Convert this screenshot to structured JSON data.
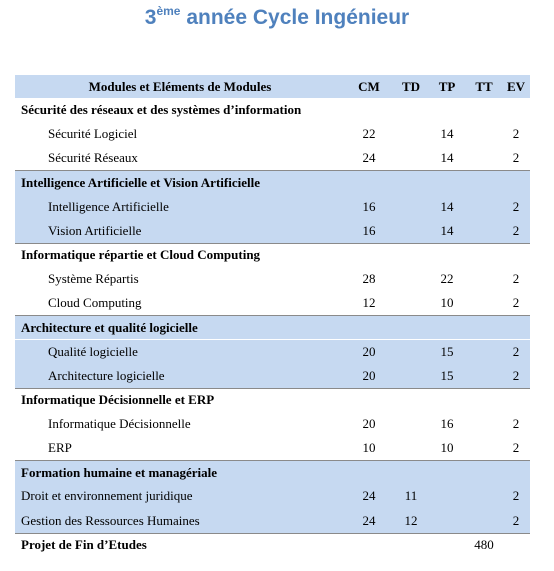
{
  "title": {
    "base": "3",
    "sup": "ème",
    "rest": " année Cycle Ingénieur"
  },
  "table": {
    "headers": [
      "Modules et Eléments de Modules",
      "CM",
      "TD",
      "TP",
      "TT",
      "EV"
    ],
    "groups": [
      {
        "name": "Sécurité des réseaux et des systèmes d’information",
        "shaded": false,
        "indented": true,
        "items": [
          {
            "name": "Sécurité Logiciel",
            "cm": 22,
            "tp": 14,
            "ev": 2
          },
          {
            "name": "Sécurité Réseaux",
            "cm": 24,
            "tp": 14,
            "ev": 2
          }
        ]
      },
      {
        "name": "Intelligence Artificielle et Vision Artificielle",
        "shaded": true,
        "indented": true,
        "items": [
          {
            "name": "Intelligence Artificielle",
            "cm": 16,
            "tp": 14,
            "ev": 2
          },
          {
            "name": "Vision Artificielle",
            "cm": 16,
            "tp": 14,
            "ev": 2
          }
        ]
      },
      {
        "name": "Informatique répartie et Cloud Computing",
        "shaded": false,
        "indented": true,
        "items": [
          {
            "name": "Système Répartis",
            "cm": 28,
            "tp": 22,
            "ev": 2
          },
          {
            "name": "Cloud Computing",
            "cm": 12,
            "tp": 10,
            "ev": 2
          }
        ]
      },
      {
        "name": "Architecture et qualité logicielle",
        "shaded": true,
        "indented": true,
        "items": [
          {
            "name": "Qualité logicielle",
            "cm": 20,
            "tp": 15,
            "ev": 2
          },
          {
            "name": "Architecture logicielle",
            "cm": 20,
            "tp": 15,
            "ev": 2
          }
        ]
      },
      {
        "name": "Informatique Décisionnelle et ERP",
        "shaded": false,
        "indented": true,
        "items": [
          {
            "name": "Informatique Décisionnelle",
            "cm": 20,
            "tp": 16,
            "ev": 2
          },
          {
            "name": "ERP",
            "cm": 10,
            "tp": 10,
            "ev": 2
          }
        ]
      },
      {
        "name": "Formation humaine et managériale",
        "shaded": true,
        "indented": false,
        "items": [
          {
            "name": "Droit et environnement juridique",
            "cm": 24,
            "td": 11,
            "ev": 2
          },
          {
            "name": "Gestion des Ressources Humaines",
            "cm": 24,
            "td": 12,
            "ev": 2
          }
        ]
      }
    ],
    "final": {
      "name": "Projet de Fin d’Etudes",
      "tt": 480
    }
  }
}
